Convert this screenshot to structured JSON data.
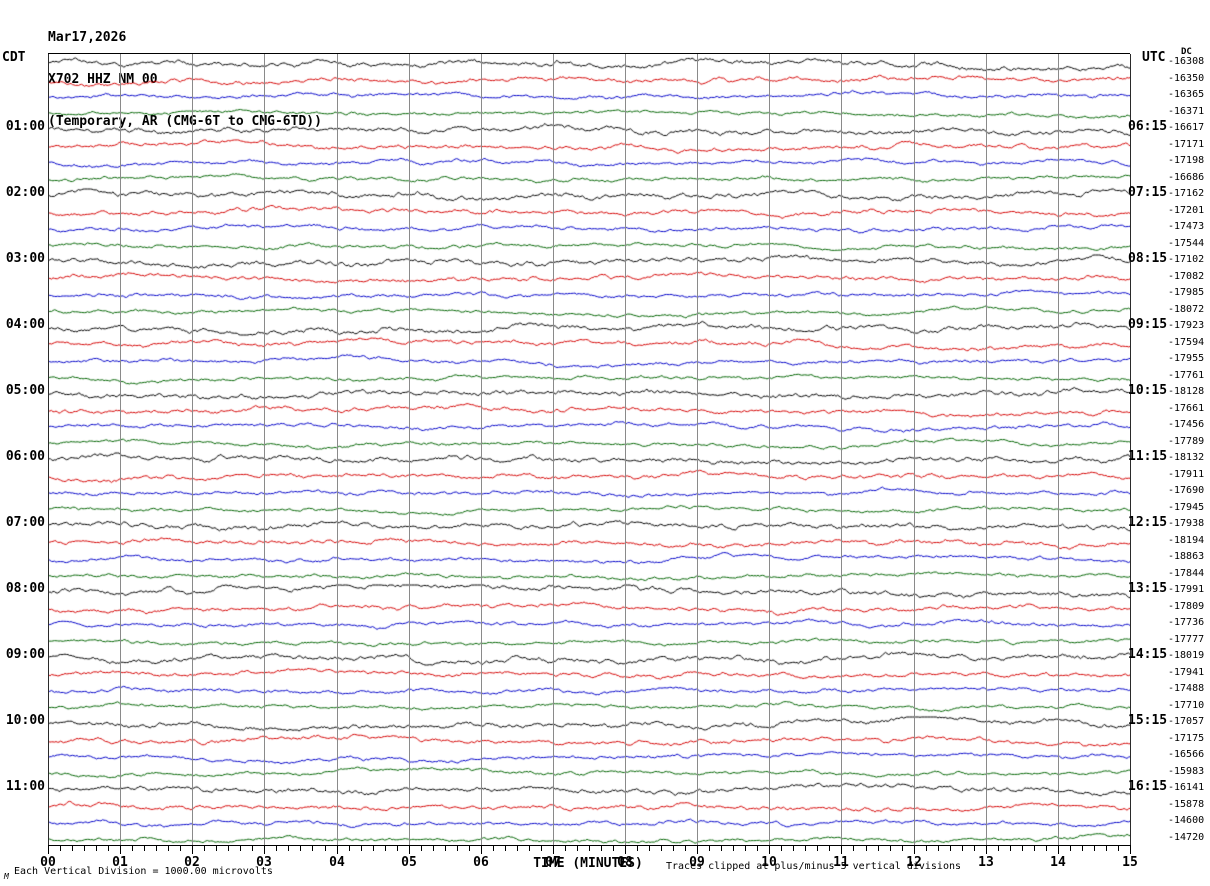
{
  "header": {
    "date": "Mar17,2026",
    "station_line": "X702 HHZ NM 00",
    "description_line": "(Temporary, AR (CMG-6T to CMG-6TD))"
  },
  "left_axis": {
    "timezone_label": "CDT",
    "hour_labels": [
      "01:00",
      "02:00",
      "03:00",
      "04:00",
      "05:00",
      "06:00",
      "07:00",
      "08:00",
      "09:00",
      "10:00",
      "11:00"
    ]
  },
  "right_axis": {
    "timezone_label": "UTC",
    "dc_header": "DC",
    "hour_labels": [
      "06:15",
      "07:15",
      "08:15",
      "09:15",
      "10:15",
      "11:15",
      "12:15",
      "13:15",
      "14:15",
      "15:15",
      "16:15"
    ],
    "dc_values": [
      "-16308",
      "-16350",
      "-16365",
      "-16371",
      "-16617",
      "-17171",
      "-17198",
      "-16686",
      "-17162",
      "-17201",
      "-17473",
      "-17544",
      "-17102",
      "-17082",
      "-17985",
      "-18072",
      "-17923",
      "-17594",
      "-17955",
      "-17761",
      "-18128",
      "-17661",
      "-17456",
      "-17789",
      "-18132",
      "-17911",
      "-17690",
      "-17945",
      "-17938",
      "-18194",
      "-18863",
      "-17844",
      "-17991",
      "-17809",
      "-17736",
      "-17777",
      "-18019",
      "-17941",
      "-17488",
      "-17710",
      "-17057",
      "-17175",
      "-16566",
      "-15983",
      "-16141",
      "-15878",
      "-14600",
      "-14720"
    ]
  },
  "bottom_axis": {
    "axis_label": "TIME (MINUTES)",
    "tick_labels": [
      "00",
      "01",
      "02",
      "03",
      "04",
      "05",
      "06",
      "07",
      "08",
      "09",
      "10",
      "11",
      "12",
      "13",
      "14",
      "15"
    ]
  },
  "footer": {
    "scale_note": "Each Vertical Division = 1000.00 microvolts",
    "clip_note": "Traces clipped at plus/minus 5 vertical divisions",
    "corner_mark": "M"
  },
  "chart_data": {
    "type": "line",
    "subtype": "helicorder-seismogram",
    "title": "Mar17,2026 X702 HHZ NM 00 (Temporary, AR (CMG-6T to CMG-6TD))",
    "xlabel": "TIME (MINUTES)",
    "x_range": [
      0,
      15
    ],
    "x_major_tick": 1,
    "x_minor_ticks_per_major": 5,
    "rows": 48,
    "minutes_per_row": 15,
    "traces_per_hour": 4,
    "row_color_cycle": [
      "#000000",
      "#d40000",
      "#0000c8",
      "#006400"
    ],
    "first_labeled_row_index": 4,
    "hour_label_row_stride": 4,
    "left_hour_labels_cdt": [
      "01:00",
      "02:00",
      "03:00",
      "04:00",
      "05:00",
      "06:00",
      "07:00",
      "08:00",
      "09:00",
      "10:00",
      "11:00"
    ],
    "right_hour_labels_utc": [
      "06:15",
      "07:15",
      "08:15",
      "09:15",
      "10:15",
      "11:15",
      "12:15",
      "13:15",
      "14:15",
      "15:15",
      "16:15"
    ],
    "row_dc_offsets": [
      -16308,
      -16350,
      -16365,
      -16371,
      -16617,
      -17171,
      -17198,
      -16686,
      -17162,
      -17201,
      -17473,
      -17544,
      -17102,
      -17082,
      -17985,
      -18072,
      -17923,
      -17594,
      -17955,
      -17761,
      -18128,
      -17661,
      -17456,
      -17789,
      -18132,
      -17911,
      -17690,
      -17945,
      -17938,
      -18194,
      -18863,
      -17844,
      -17991,
      -17809,
      -17736,
      -17777,
      -18019,
      -17941,
      -17488,
      -17710,
      -17057,
      -17175,
      -16566,
      -15983,
      -16141,
      -15878,
      -14600,
      -14720
    ],
    "vertical_division_microvolts": 1000.0,
    "clip_limit_divisions": 5,
    "grid": "vertical gridline at each minute"
  }
}
